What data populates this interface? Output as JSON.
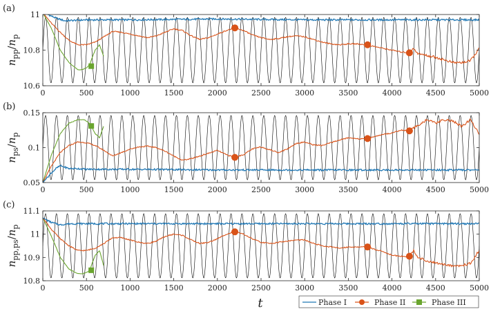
{
  "chart_data": [
    {
      "type": "line",
      "panel_label": "(a)",
      "ylabel": "n_pp/n_p",
      "ylabel_parts": {
        "main": "n",
        "sub1": "pp",
        "slash": "/",
        "main2": "n",
        "sub2": "p"
      },
      "xlabel": "",
      "xlim": [
        0,
        5000
      ],
      "ylim": [
        10.6,
        11.0
      ],
      "xticks": [
        0,
        500,
        1000,
        1500,
        2000,
        2500,
        3000,
        3500,
        4000,
        4500,
        5000
      ],
      "yticks": [
        10.6,
        10.8,
        11.0
      ],
      "ytick_labels": [
        "10.6",
        "10.8",
        "11"
      ],
      "series": [
        {
          "name": "Phase I",
          "x": [
            0,
            60,
            150,
            250,
            500,
            1000,
            2000,
            3000,
            4000,
            5000
          ],
          "y": [
            11.01,
            11.0,
            10.98,
            10.965,
            10.97,
            10.97,
            10.975,
            10.97,
            10.97,
            10.97
          ]
        },
        {
          "name": "Phase II",
          "x": [
            0,
            100,
            200,
            300,
            400,
            500,
            600,
            700,
            800,
            900,
            1000,
            1100,
            1200,
            1300,
            1400,
            1500,
            1600,
            1700,
            1800,
            1900,
            2000,
            2100,
            2200,
            2300,
            2400,
            2500,
            2600,
            2700,
            2800,
            2900,
            3000,
            3100,
            3200,
            3300,
            3400,
            3500,
            3600,
            3700,
            3800,
            3900,
            4000,
            4100,
            4200,
            4250,
            4300,
            4400,
            4500,
            4600,
            4700,
            4800,
            4900,
            5000
          ],
          "y": [
            11.01,
            10.95,
            10.9,
            10.855,
            10.83,
            10.83,
            10.845,
            10.875,
            10.905,
            10.9,
            10.89,
            10.88,
            10.87,
            10.88,
            10.9,
            10.92,
            10.91,
            10.88,
            10.86,
            10.87,
            10.89,
            10.91,
            10.925,
            10.91,
            10.885,
            10.87,
            10.86,
            10.865,
            10.875,
            10.88,
            10.875,
            10.86,
            10.845,
            10.835,
            10.83,
            10.835,
            10.835,
            10.83,
            10.82,
            10.81,
            10.8,
            10.79,
            10.785,
            10.81,
            10.78,
            10.77,
            10.76,
            10.745,
            10.73,
            10.73,
            10.74,
            10.81
          ]
        },
        {
          "name": "Phase III",
          "x": [
            0,
            100,
            200,
            300,
            400,
            450,
            500,
            540,
            560,
            600,
            650,
            700
          ],
          "y": [
            11.01,
            10.92,
            10.8,
            10.73,
            10.69,
            10.69,
            10.7,
            10.72,
            10.75,
            10.8,
            10.83,
            10.76
          ]
        },
        {
          "name": "drive",
          "periodic": true,
          "period": 125,
          "amplitude_fraction": 0.92,
          "color": "#000000"
        }
      ],
      "markers": {
        "Phase II": [
          [
            2200,
            10.925
          ],
          [
            3720,
            10.83
          ],
          [
            4200,
            10.785
          ]
        ],
        "Phase III": [
          [
            555,
            10.71
          ]
        ]
      }
    },
    {
      "type": "line",
      "panel_label": "(b)",
      "ylabel": "n_ps/n_p",
      "ylabel_parts": {
        "main": "n",
        "sub1": "ps",
        "slash": "/",
        "main2": "n",
        "sub2": "p"
      },
      "xlabel": "",
      "xlim": [
        0,
        5000
      ],
      "ylim": [
        0.05,
        0.15
      ],
      "xticks": [
        0,
        500,
        1000,
        1500,
        2000,
        2500,
        3000,
        3500,
        4000,
        4500,
        5000
      ],
      "yticks": [
        0.05,
        0.1,
        0.15
      ],
      "ytick_labels": [
        "0.05",
        "0.1",
        "0.15"
      ],
      "series": [
        {
          "name": "Phase I",
          "x": [
            0,
            50,
            100,
            150,
            200,
            250,
            300,
            400,
            500,
            1000,
            2000,
            3000,
            4000,
            5000
          ],
          "y": [
            0.05,
            0.057,
            0.064,
            0.07,
            0.074,
            0.072,
            0.07,
            0.07,
            0.069,
            0.069,
            0.068,
            0.068,
            0.068,
            0.068
          ]
        },
        {
          "name": "Phase II",
          "x": [
            0,
            100,
            200,
            300,
            400,
            500,
            600,
            700,
            800,
            900,
            1000,
            1100,
            1200,
            1300,
            1400,
            1500,
            1600,
            1700,
            1800,
            1900,
            2000,
            2100,
            2200,
            2300,
            2400,
            2500,
            2600,
            2700,
            2800,
            2900,
            3000,
            3100,
            3200,
            3300,
            3400,
            3500,
            3600,
            3700,
            3800,
            3900,
            4000,
            4100,
            4200,
            4300,
            4400,
            4500,
            4600,
            4700,
            4800,
            4900,
            5000
          ],
          "y": [
            0.05,
            0.074,
            0.093,
            0.103,
            0.108,
            0.107,
            0.103,
            0.096,
            0.088,
            0.093,
            0.098,
            0.101,
            0.102,
            0.1,
            0.095,
            0.088,
            0.082,
            0.084,
            0.088,
            0.092,
            0.096,
            0.09,
            0.086,
            0.09,
            0.098,
            0.101,
            0.097,
            0.093,
            0.098,
            0.106,
            0.108,
            0.104,
            0.103,
            0.107,
            0.111,
            0.114,
            0.113,
            0.112,
            0.116,
            0.119,
            0.121,
            0.125,
            0.124,
            0.132,
            0.14,
            0.135,
            0.14,
            0.138,
            0.13,
            0.14,
            0.12
          ]
        },
        {
          "name": "Phase III",
          "x": [
            0,
            100,
            200,
            300,
            400,
            480,
            520,
            560,
            600,
            650,
            700
          ],
          "y": [
            0.05,
            0.09,
            0.12,
            0.135,
            0.14,
            0.14,
            0.136,
            0.13,
            0.12,
            0.114,
            0.132
          ]
        },
        {
          "name": "drive",
          "periodic": true,
          "period": 125,
          "amplitude_fraction": 0.92,
          "color": "#000000"
        }
      ],
      "markers": {
        "Phase II": [
          [
            2200,
            0.086
          ],
          [
            3720,
            0.113
          ],
          [
            4200,
            0.124
          ]
        ],
        "Phase III": [
          [
            555,
            0.131
          ]
        ]
      }
    },
    {
      "type": "line",
      "panel_label": "(c)",
      "ylabel": "n_pp,ps/n_p",
      "ylabel_parts": {
        "main": "n",
        "sub1": "pp,ps",
        "slash": "/",
        "main2": "n",
        "sub2": "p"
      },
      "xlabel": "t",
      "xlim": [
        0,
        5000
      ],
      "ylim": [
        10.8,
        11.1
      ],
      "xticks": [
        0,
        500,
        1000,
        1500,
        2000,
        2500,
        3000,
        3500,
        4000,
        4500,
        5000
      ],
      "yticks": [
        10.8,
        10.9,
        11.0,
        11.1
      ],
      "ytick_labels": [
        "10.8",
        "10.9",
        "11",
        "11.1"
      ],
      "series": [
        {
          "name": "Phase I",
          "x": [
            0,
            100,
            200,
            300,
            500,
            1000,
            2000,
            3000,
            4000,
            5000
          ],
          "y": [
            11.07,
            11.05,
            11.04,
            11.045,
            11.045,
            11.045,
            11.045,
            11.045,
            11.045,
            11.045
          ]
        },
        {
          "name": "Phase II",
          "x": [
            0,
            100,
            200,
            300,
            400,
            500,
            600,
            700,
            800,
            900,
            1000,
            1100,
            1200,
            1300,
            1400,
            1500,
            1600,
            1700,
            1800,
            1900,
            2000,
            2100,
            2200,
            2300,
            2400,
            2500,
            2600,
            2700,
            2800,
            2900,
            3000,
            3100,
            3200,
            3300,
            3400,
            3500,
            3600,
            3700,
            3800,
            3900,
            4000,
            4100,
            4200,
            4250,
            4300,
            4400,
            4500,
            4600,
            4700,
            4800,
            4900,
            5000
          ],
          "y": [
            11.07,
            11.02,
            10.98,
            10.95,
            10.93,
            10.93,
            10.94,
            10.96,
            10.985,
            10.985,
            10.975,
            10.965,
            10.96,
            10.97,
            10.99,
            11.0,
            10.995,
            10.975,
            10.96,
            10.965,
            10.98,
            11.0,
            11.01,
            11.0,
            10.98,
            10.965,
            10.96,
            10.965,
            10.97,
            10.975,
            10.975,
            10.96,
            10.95,
            10.945,
            10.94,
            10.945,
            10.945,
            10.945,
            10.935,
            10.925,
            10.91,
            10.905,
            10.905,
            10.93,
            10.9,
            10.885,
            10.875,
            10.87,
            10.865,
            10.865,
            10.875,
            10.93
          ]
        },
        {
          "name": "Phase III",
          "x": [
            0,
            100,
            200,
            300,
            400,
            450,
            500,
            540,
            560,
            600,
            650,
            700
          ],
          "y": [
            11.07,
            10.99,
            10.9,
            10.85,
            10.83,
            10.83,
            10.835,
            10.845,
            10.87,
            10.91,
            10.93,
            10.86
          ]
        },
        {
          "name": "drive",
          "periodic": true,
          "period": 125,
          "amplitude_fraction": 0.92,
          "color": "#000000"
        }
      ],
      "markers": {
        "Phase II": [
          [
            2200,
            11.01
          ],
          [
            3720,
            10.945
          ],
          [
            4200,
            10.905
          ]
        ],
        "Phase III": [
          [
            555,
            10.845
          ]
        ]
      }
    }
  ],
  "legend": {
    "placement": "bottom-right",
    "entries": [
      {
        "label": "Phase I",
        "color": "#1f77b4",
        "marker": "none"
      },
      {
        "label": "Phase II",
        "color": "#d95319",
        "marker": "circle"
      },
      {
        "label": "Phase III",
        "color": "#6aa52f",
        "marker": "square"
      }
    ]
  },
  "colors": {
    "phase1": "#1f77b4",
    "phase2": "#d95319",
    "phase3": "#6aa52f",
    "drive": "#000000"
  }
}
